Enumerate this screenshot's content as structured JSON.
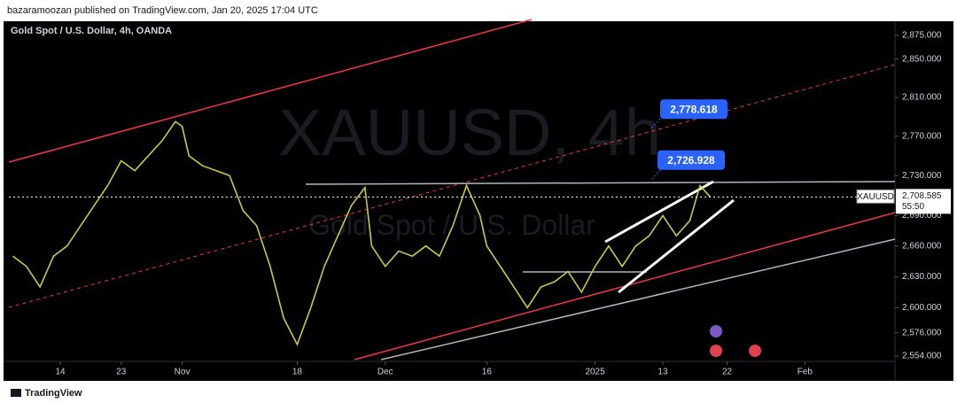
{
  "header": "bazaramoozan published on TradingView.com, Jan 20, 2025 17:04 UTC",
  "footer": "TradingView",
  "chart_data": {
    "type": "line",
    "title": "Gold Spot / U.S. Dollar, 4h, OANDA",
    "watermark": "XAUUSD, 4h",
    "watermark_subtitle": "Gold Spot / U.S. Dollar",
    "symbol": "XAUUSD",
    "countdown": "55:50",
    "color": "#c9c93a",
    "log_scale": true,
    "x": [
      -7,
      -5,
      -3,
      -1,
      1,
      3,
      5,
      7,
      9,
      11,
      13,
      15,
      17,
      18,
      19,
      21,
      23,
      25,
      27,
      29,
      31,
      33,
      35,
      37,
      39,
      41,
      43,
      45,
      46,
      48,
      50,
      52,
      54,
      56,
      58,
      60,
      62,
      63,
      65,
      67,
      69,
      71,
      73,
      75,
      77,
      79,
      81,
      83,
      85,
      87,
      89,
      91,
      93,
      94.5,
      96
    ],
    "values": [
      2650,
      2640,
      2620,
      2650,
      2660,
      2680,
      2700,
      2720,
      2745,
      2735,
      2750,
      2765,
      2785,
      2780,
      2750,
      2740,
      2735,
      2730,
      2695,
      2680,
      2640,
      2590,
      2565,
      2600,
      2640,
      2670,
      2700,
      2718,
      2660,
      2640,
      2655,
      2650,
      2660,
      2650,
      2680,
      2720,
      2690,
      2660,
      2640,
      2620,
      2600,
      2620,
      2625,
      2635,
      2615,
      2640,
      2660,
      2640,
      2660,
      2670,
      2690,
      2670,
      2685,
      2720,
      2708.585
    ],
    "xlim": [
      -7.6,
      123.3
    ],
    "xticks": [
      {
        "value": 0,
        "label": "14"
      },
      {
        "value": 9,
        "label": "23"
      },
      {
        "value": 18,
        "label": "Nov"
      },
      {
        "value": 35,
        "label": "18"
      },
      {
        "value": 48,
        "label": "Dec"
      },
      {
        "value": 63,
        "label": "16"
      },
      {
        "value": 79,
        "label": "2025"
      },
      {
        "value": 89,
        "label": "13"
      },
      {
        "value": 98.5,
        "label": "22"
      },
      {
        "value": 110,
        "label": "Feb"
      }
    ],
    "ylim": [
      2549,
      2892
    ],
    "yticks": [
      {
        "value": 2875,
        "label": "2,875.000"
      },
      {
        "value": 2850,
        "label": "2,850.000"
      },
      {
        "value": 2810,
        "label": "2,810.000"
      },
      {
        "value": 2770,
        "label": "2,770.000"
      },
      {
        "value": 2730,
        "label": "2,730.000"
      },
      {
        "value": 2690,
        "label": "2,690.000"
      },
      {
        "value": 2660,
        "label": "2,660.000"
      },
      {
        "value": 2630,
        "label": "2,630.000"
      },
      {
        "value": 2600,
        "label": "2,600.000"
      },
      {
        "value": 2576,
        "label": "2,576.000"
      },
      {
        "value": 2554,
        "label": "2,554.000"
      }
    ],
    "annotations": [
      {
        "value": 2778.618,
        "label": "2,778.618"
      },
      {
        "value": 2726.928,
        "label": "2,726.928"
      },
      {
        "value": 2708.585,
        "label": "2,708.585"
      }
    ]
  }
}
